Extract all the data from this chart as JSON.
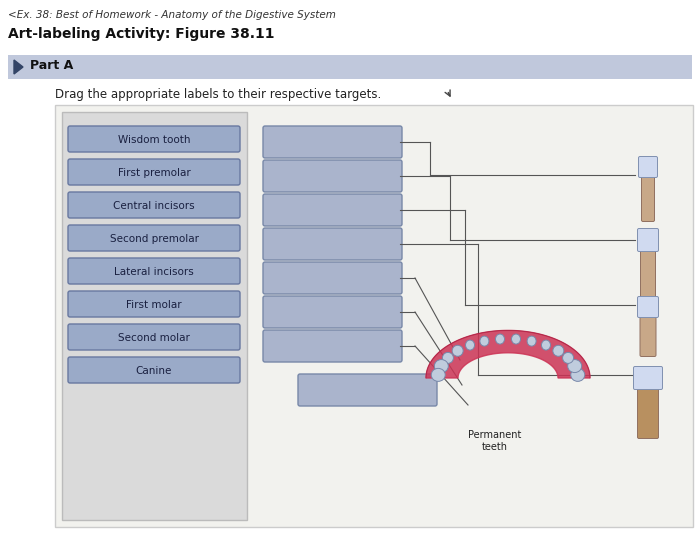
{
  "title_line1": "<Ex. 38: Best of Homework - Anatomy of the Digestive System",
  "title_line2": "Art-labeling Activity: Figure 38.11",
  "part_label": "Part A",
  "instruction": "Drag the appropriate labels to their respective targets.",
  "label_buttons": [
    "Wisdom tooth",
    "First premolar",
    "Central incisors",
    "Second premolar",
    "Lateral incisors",
    "First molar",
    "Second molar",
    "Canine"
  ],
  "header_bg": "#ffffff",
  "part_a_bg": "#c0c8dc",
  "panel_bg": "#ececec",
  "left_panel_bg": "#d8d8d8",
  "button_bg": "#9aaac8",
  "button_border": "#6878a0",
  "target_box_bg": "#aab4cc",
  "target_box_border": "#7888a8",
  "permanent_teeth_label": "Permanent\nteeth",
  "line_color": "#555555"
}
